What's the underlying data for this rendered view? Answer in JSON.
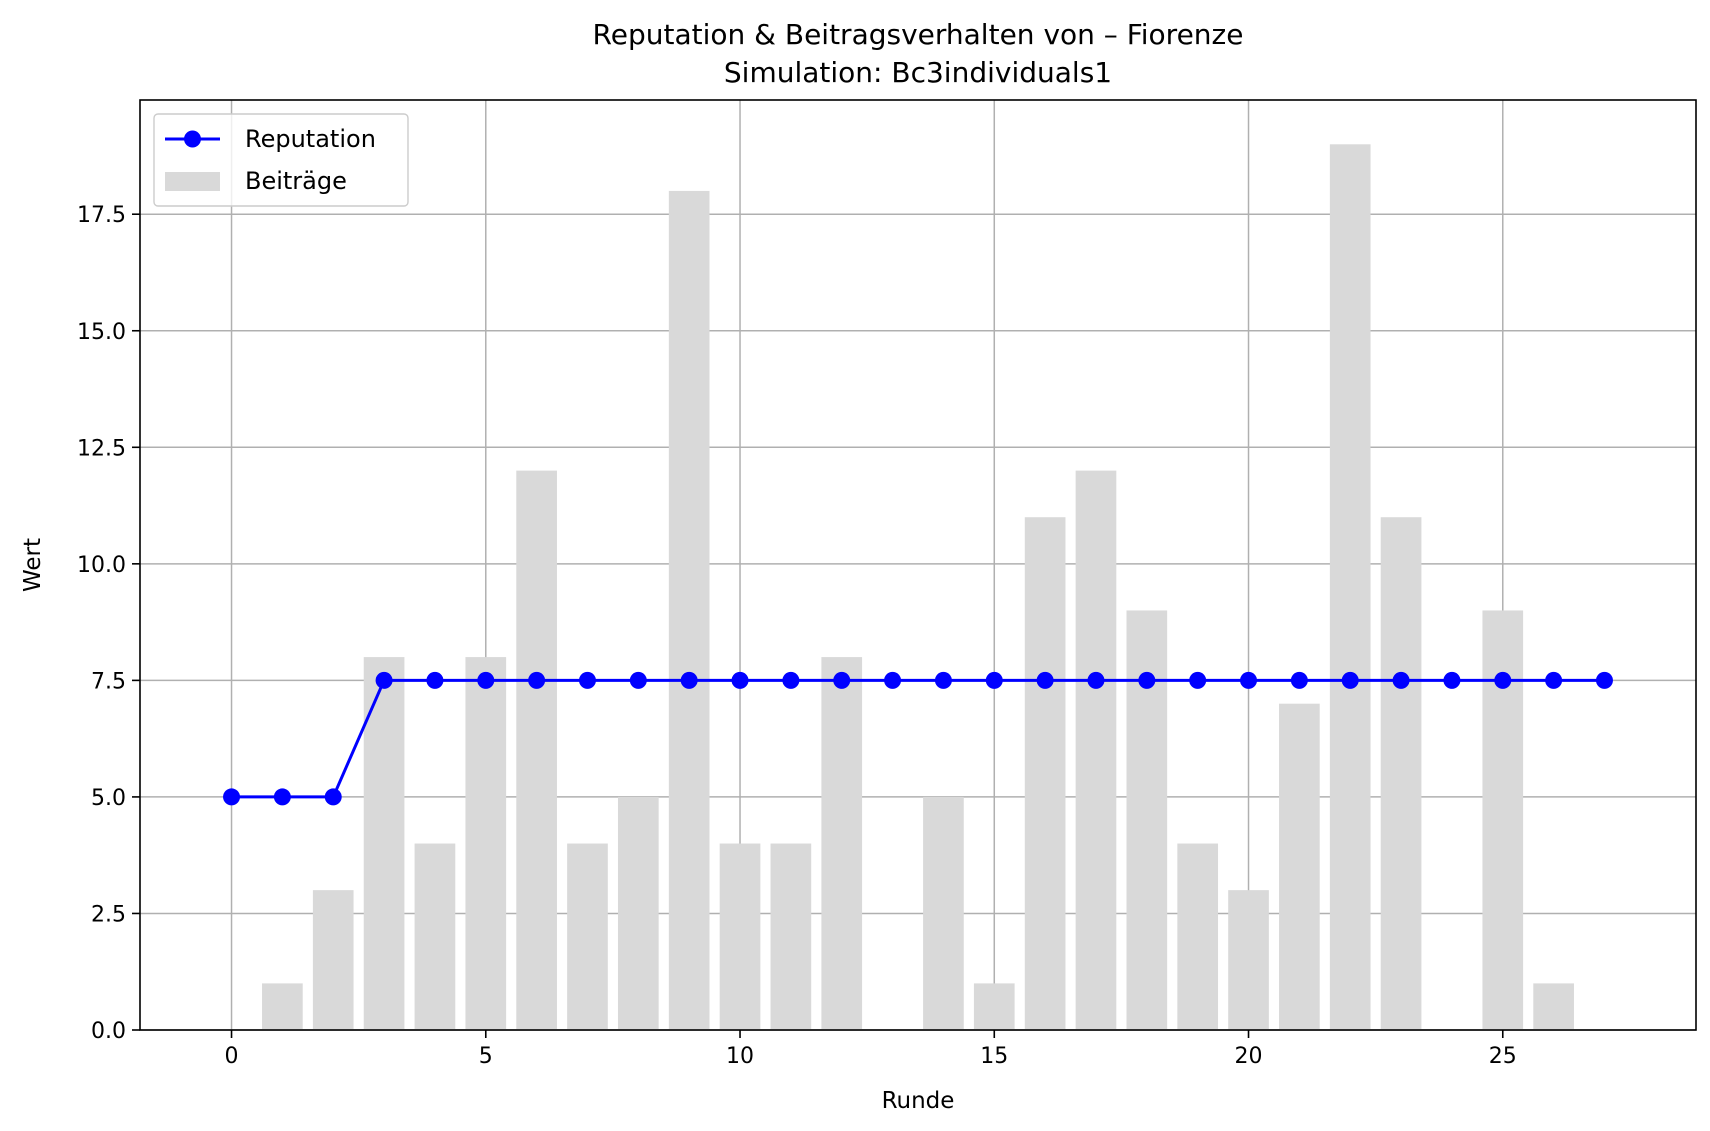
{
  "chart_data": {
    "type": "bar+line",
    "title": "Reputation & Beitragsverhalten von – Fiorenze",
    "subtitle": "Simulation: Bc3individuals1",
    "xlabel": "Runde",
    "ylabel": "Wert",
    "xlim": [
      -1.8,
      28.8
    ],
    "ylim": [
      0,
      19.95
    ],
    "x": [
      0,
      1,
      2,
      3,
      4,
      5,
      6,
      7,
      8,
      9,
      10,
      11,
      12,
      13,
      14,
      15,
      16,
      17,
      18,
      19,
      20,
      21,
      22,
      23,
      24,
      25,
      26,
      27
    ],
    "xticks": [
      0,
      5,
      10,
      15,
      20,
      25
    ],
    "xtick_labels": [
      "0",
      "5",
      "10",
      "15",
      "20",
      "25"
    ],
    "yticks": [
      0,
      2.5,
      5,
      7.5,
      10,
      12.5,
      15,
      17.5
    ],
    "ytick_labels": [
      "0.0",
      "2.5",
      "5.0",
      "7.5",
      "10.0",
      "12.5",
      "15.0",
      "17.5"
    ],
    "grid": true,
    "legend_position": "top-left",
    "series": [
      {
        "name": "Reputation",
        "kind": "line",
        "marker": "circle",
        "color": "#0000ff",
        "values": [
          5,
          5,
          5,
          7.5,
          7.5,
          7.5,
          7.5,
          7.5,
          7.5,
          7.5,
          7.5,
          7.5,
          7.5,
          7.5,
          7.5,
          7.5,
          7.5,
          7.5,
          7.5,
          7.5,
          7.5,
          7.5,
          7.5,
          7.5,
          7.5,
          7.5,
          7.5,
          7.5
        ]
      },
      {
        "name": "Beiträge",
        "kind": "bar",
        "color": "#d9d9d9",
        "values": [
          0,
          1,
          3,
          8,
          4,
          8,
          12,
          4,
          5,
          18,
          4,
          4,
          8,
          0,
          5,
          1,
          11,
          12,
          9,
          4,
          3,
          7,
          19,
          11,
          0,
          9,
          1,
          0
        ]
      }
    ]
  }
}
